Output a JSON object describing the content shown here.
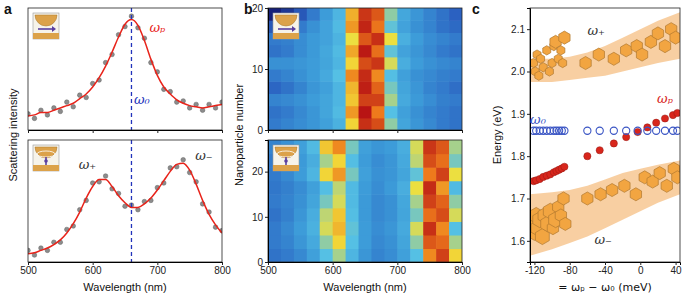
{
  "chart_data": [
    {
      "type": "scatter",
      "title": "a",
      "ylabel": "Scattering intensity",
      "x": [
        500,
        510,
        520,
        530,
        540,
        550,
        560,
        570,
        580,
        590,
        600,
        610,
        620,
        630,
        640,
        650,
        660,
        670,
        680,
        690,
        700,
        710,
        720,
        730,
        740,
        750,
        760,
        770,
        780,
        790,
        800
      ],
      "xlim": [
        500,
        800
      ],
      "xticks": [
        500,
        600,
        700,
        800
      ],
      "ylim": [
        0.05,
        1.1
      ],
      "tick_labels": false,
      "series": [
        {
          "type": "scatter",
          "marker": "circle",
          "color": "#8c8c8c",
          "values": [
            0.19,
            0.15,
            0.22,
            0.18,
            0.24,
            0.21,
            0.29,
            0.25,
            0.35,
            0.33,
            0.45,
            0.48,
            0.63,
            0.7,
            0.87,
            0.94,
            1.03,
            0.93,
            0.84,
            0.63,
            0.55,
            0.4,
            0.38,
            0.29,
            0.3,
            0.24,
            0.27,
            0.22,
            0.27,
            0.24,
            0.29
          ]
        },
        {
          "type": "line",
          "color": "#e8231a",
          "values": [
            0.17,
            0.18,
            0.2,
            0.2,
            0.22,
            0.24,
            0.26,
            0.28,
            0.32,
            0.36,
            0.42,
            0.5,
            0.6,
            0.72,
            0.85,
            0.96,
            1.0,
            0.95,
            0.82,
            0.66,
            0.52,
            0.42,
            0.36,
            0.31,
            0.28,
            0.26,
            0.25,
            0.24,
            0.25,
            0.26,
            0.27
          ]
        }
      ],
      "reference_lines": [
        {
          "x": 660,
          "color": "#2233bb",
          "line_style": "dashed"
        }
      ],
      "annotations": [
        {
          "text": "ωₚ",
          "x": 700,
          "y": 0.92,
          "color": "#e8231a"
        },
        {
          "text": "ω₀",
          "x": 676,
          "y": 0.3,
          "color": "#2233bb"
        }
      ]
    },
    {
      "type": "scatter",
      "xlabel": "Wavelength (nm)",
      "x": [
        500,
        510,
        520,
        530,
        540,
        550,
        560,
        570,
        580,
        590,
        600,
        610,
        620,
        630,
        640,
        650,
        660,
        670,
        680,
        690,
        700,
        710,
        720,
        730,
        740,
        750,
        760,
        770,
        780,
        790,
        800
      ],
      "xlim": [
        500,
        800
      ],
      "xticks": [
        500,
        600,
        700,
        800
      ],
      "ylim": [
        0.05,
        1.1
      ],
      "tick_labels": "x",
      "series": [
        {
          "type": "scatter",
          "marker": "circle",
          "color": "#8c8c8c",
          "values": [
            0.15,
            0.11,
            0.17,
            0.15,
            0.22,
            0.22,
            0.33,
            0.36,
            0.5,
            0.58,
            0.73,
            0.74,
            0.79,
            0.68,
            0.64,
            0.53,
            0.54,
            0.5,
            0.57,
            0.58,
            0.69,
            0.73,
            0.86,
            0.87,
            0.93,
            0.82,
            0.74,
            0.55,
            0.48,
            0.35,
            0.32
          ]
        },
        {
          "type": "line",
          "color": "#e8231a",
          "values": [
            0.12,
            0.13,
            0.15,
            0.17,
            0.2,
            0.24,
            0.3,
            0.38,
            0.48,
            0.6,
            0.7,
            0.76,
            0.76,
            0.7,
            0.62,
            0.56,
            0.52,
            0.52,
            0.55,
            0.6,
            0.67,
            0.75,
            0.83,
            0.89,
            0.9,
            0.84,
            0.72,
            0.58,
            0.46,
            0.37,
            0.3
          ]
        }
      ],
      "reference_lines": [
        {
          "x": 660,
          "color": "#2233bb",
          "line_style": "dashed"
        }
      ],
      "annotations": [
        {
          "text": "ω₊",
          "x": 592,
          "y": 0.88,
          "color": "#333333"
        },
        {
          "text": "ω₋",
          "x": 772,
          "y": 0.96,
          "color": "#333333"
        }
      ]
    },
    {
      "type": "heatmap",
      "title": "b",
      "ylabel": "Nanoparticle number",
      "xlim": [
        500,
        800
      ],
      "xticks": [
        500,
        600,
        700,
        800
      ],
      "ylim": [
        0,
        20
      ],
      "yticks": [
        0,
        10,
        20
      ],
      "tick_labels": "y",
      "cells": [
        [
          0.3,
          0.32,
          0.34,
          0.36,
          0.4,
          0.48,
          0.7,
          0.95,
          0.9,
          0.6,
          0.42,
          0.36,
          0.33,
          0.3,
          0.28
        ],
        [
          0.28,
          0.3,
          0.33,
          0.36,
          0.42,
          0.52,
          0.78,
          1.0,
          0.82,
          0.55,
          0.4,
          0.35,
          0.32,
          0.3,
          0.28
        ],
        [
          0.32,
          0.33,
          0.35,
          0.38,
          0.42,
          0.5,
          0.72,
          0.92,
          0.92,
          0.62,
          0.44,
          0.37,
          0.34,
          0.31,
          0.3
        ],
        [
          0.25,
          0.28,
          0.32,
          0.36,
          0.4,
          0.5,
          0.74,
          0.98,
          0.86,
          0.58,
          0.42,
          0.36,
          0.32,
          0.3,
          0.27
        ],
        [
          0.3,
          0.32,
          0.35,
          0.38,
          0.44,
          0.55,
          0.8,
          0.96,
          0.8,
          0.54,
          0.4,
          0.35,
          0.33,
          0.31,
          0.3
        ],
        [
          0.35,
          0.35,
          0.36,
          0.38,
          0.42,
          0.5,
          0.7,
          0.9,
          0.94,
          0.66,
          0.46,
          0.38,
          0.35,
          0.33,
          0.32
        ],
        [
          0.28,
          0.3,
          0.34,
          0.37,
          0.43,
          0.52,
          0.76,
          0.99,
          0.84,
          0.56,
          0.41,
          0.36,
          0.33,
          0.3,
          0.28
        ],
        [
          0.3,
          0.31,
          0.34,
          0.37,
          0.41,
          0.49,
          0.68,
          0.88,
          0.95,
          0.68,
          0.47,
          0.38,
          0.34,
          0.32,
          0.3
        ],
        [
          0.22,
          0.26,
          0.3,
          0.35,
          0.41,
          0.52,
          0.78,
          0.97,
          0.83,
          0.56,
          0.41,
          0.35,
          0.32,
          0.28,
          0.26
        ],
        [
          0.1,
          0.15,
          0.22,
          0.3,
          0.38,
          0.5,
          0.75,
          0.94,
          0.88,
          0.6,
          0.43,
          0.36,
          0.32,
          0.28,
          0.24
        ]
      ]
    },
    {
      "type": "heatmap",
      "xlabel": "Wavelength (nm)",
      "xlim": [
        500,
        800
      ],
      "xticks": [
        500,
        600,
        700,
        800
      ],
      "ylim": [
        0,
        27
      ],
      "yticks": [
        0,
        10,
        20
      ],
      "cells": [
        [
          0.28,
          0.3,
          0.33,
          0.4,
          0.55,
          0.62,
          0.5,
          0.36,
          0.32,
          0.34,
          0.4,
          0.55,
          0.8,
          0.92,
          0.7
        ],
        [
          0.3,
          0.32,
          0.36,
          0.44,
          0.6,
          0.7,
          0.55,
          0.38,
          0.33,
          0.35,
          0.42,
          0.6,
          0.88,
          0.85,
          0.62
        ],
        [
          0.3,
          0.33,
          0.38,
          0.48,
          0.66,
          0.74,
          0.56,
          0.38,
          0.34,
          0.36,
          0.44,
          0.66,
          0.95,
          0.8,
          0.55
        ],
        [
          0.28,
          0.31,
          0.36,
          0.46,
          0.64,
          0.72,
          0.54,
          0.37,
          0.33,
          0.35,
          0.42,
          0.58,
          0.84,
          0.9,
          0.66
        ],
        [
          0.3,
          0.32,
          0.35,
          0.42,
          0.58,
          0.66,
          0.52,
          0.37,
          0.33,
          0.35,
          0.43,
          0.62,
          0.92,
          0.86,
          0.6
        ],
        [
          0.29,
          0.31,
          0.34,
          0.4,
          0.54,
          0.64,
          0.52,
          0.38,
          0.34,
          0.37,
          0.46,
          0.68,
          0.96,
          0.78,
          0.52
        ],
        [
          0.3,
          0.33,
          0.38,
          0.5,
          0.7,
          0.78,
          0.58,
          0.4,
          0.35,
          0.36,
          0.42,
          0.56,
          0.82,
          0.92,
          0.68
        ],
        [
          0.3,
          0.32,
          0.37,
          0.46,
          0.62,
          0.7,
          0.54,
          0.38,
          0.34,
          0.36,
          0.44,
          0.64,
          0.9,
          0.84,
          0.58
        ],
        [
          0.32,
          0.35,
          0.4,
          0.52,
          0.72,
          0.8,
          0.58,
          0.4,
          0.36,
          0.38,
          0.46,
          0.66,
          0.94,
          0.88,
          0.62
        ]
      ]
    },
    {
      "type": "scatter",
      "title": "c",
      "xlabel": "= ωₚ − ω₀ (meV)",
      "ylabel": "Energy (eV)",
      "xlim": [
        -125,
        45
      ],
      "xticks": [
        -120,
        -80,
        -40,
        0,
        40
      ],
      "ylim": [
        1.55,
        2.15
      ],
      "yticks": [
        1.6,
        1.7,
        1.8,
        1.9,
        {
          "value": 2,
          "label": "2.0"
        },
        2.1
      ],
      "series": [
        {
          "type": "area",
          "color": "#f7c792",
          "x": [
            -125,
            -100,
            -80,
            -60,
            -40,
            -20,
            0,
            20,
            45
          ],
          "lower": [
            1.975,
            1.975,
            1.98,
            1.985,
            1.99,
            2.0,
            2.01,
            2.02,
            2.03
          ],
          "values": [
            2.03,
            2.03,
            2.035,
            2.045,
            2.06,
            2.08,
            2.1,
            2.12,
            2.14
          ]
        },
        {
          "type": "area",
          "color": "#f7c792",
          "x": [
            -125,
            -100,
            -80,
            -60,
            -40,
            -20,
            0,
            20,
            45
          ],
          "lower": [
            1.565,
            1.58,
            1.595,
            1.61,
            1.63,
            1.65,
            1.67,
            1.69,
            1.71
          ],
          "values": [
            1.71,
            1.715,
            1.72,
            1.73,
            1.745,
            1.76,
            1.77,
            1.78,
            1.79
          ]
        },
        {
          "type": "scatter",
          "marker": "hexagon",
          "color": "#f2a541",
          "x": [
            -121,
            -119,
            -117,
            -115,
            -113,
            -110,
            -106,
            -103,
            -100,
            -98,
            -96,
            -93,
            -90,
            -88,
            -86,
            -62,
            -47,
            -30,
            -16,
            -4,
            2,
            12,
            20,
            28,
            35,
            40
          ],
          "values": [
            2.02,
            2.0,
            2.04,
            1.99,
            2.03,
            2.01,
            2.05,
            2.0,
            2.02,
            2.06,
            2.07,
            2.03,
            2.05,
            2.02,
            2.08,
            2.02,
            2.04,
            2.03,
            2.05,
            2.06,
            2.04,
            2.07,
            2.09,
            2.06,
            2.1,
            2.08
          ],
          "sizes": [
            1,
            1,
            1,
            1,
            1,
            1,
            1,
            1,
            1,
            1,
            2,
            1,
            1,
            1,
            2,
            2,
            2,
            2,
            2,
            2,
            2,
            2,
            2,
            2,
            2,
            2
          ]
        },
        {
          "type": "scatter",
          "marker": "hexagon",
          "color": "#f2a541",
          "x": [
            -122,
            -120,
            -118,
            -116,
            -114,
            -111,
            -108,
            -105,
            -102,
            -99,
            -96,
            -93,
            -90,
            -87,
            -85,
            -60,
            -45,
            -32,
            -18,
            -5,
            5,
            14,
            22,
            30,
            38,
            42
          ],
          "values": [
            1.64,
            1.62,
            1.66,
            1.63,
            1.65,
            1.61,
            1.66,
            1.64,
            1.67,
            1.63,
            1.65,
            1.68,
            1.66,
            1.7,
            1.64,
            1.7,
            1.71,
            1.72,
            1.73,
            1.71,
            1.75,
            1.74,
            1.76,
            1.73,
            1.77,
            1.75
          ],
          "sizes": [
            3,
            3,
            3,
            3,
            3,
            3,
            3,
            3,
            3,
            2,
            3,
            2,
            2,
            2,
            2,
            2,
            2,
            2,
            2,
            2,
            2,
            2,
            2,
            2,
            2,
            2
          ]
        },
        {
          "type": "scatter",
          "marker": "circle",
          "color": "#d8261c",
          "x": [
            -121,
            -118,
            -114,
            -110,
            -106,
            -102,
            -98,
            -95,
            -92,
            -89,
            -86,
            -60,
            -46,
            -30,
            -16,
            -3,
            8,
            18,
            28,
            37,
            42
          ],
          "values": [
            1.741,
            1.743,
            1.746,
            1.751,
            1.754,
            1.757,
            1.762,
            1.765,
            1.768,
            1.771,
            1.775,
            1.8,
            1.814,
            1.83,
            1.845,
            1.857,
            1.868,
            1.879,
            1.889,
            1.897,
            1.902
          ]
        },
        {
          "type": "scatter",
          "marker": "circle-open",
          "color": "#3a55c4",
          "x": [
            -121,
            -118,
            -114,
            -110,
            -106,
            -102,
            -98,
            -95,
            -92,
            -89,
            -86,
            -60,
            -46,
            -30,
            -16,
            -3,
            8,
            18,
            28,
            37,
            42
          ],
          "values": [
            1.86,
            1.86,
            1.86,
            1.86,
            1.86,
            1.86,
            1.86,
            1.86,
            1.86,
            1.86,
            1.86,
            1.86,
            1.86,
            1.86,
            1.86,
            1.86,
            1.86,
            1.86,
            1.86,
            1.86,
            1.86
          ]
        }
      ],
      "annotations": [
        {
          "text": "ω₊",
          "x": -50,
          "y": 2.095,
          "color": "#333333"
        },
        {
          "text": "ω₋",
          "x": -42,
          "y": 1.6,
          "color": "#333333"
        },
        {
          "text": "ωₚ",
          "x": 28,
          "y": 1.935,
          "color": "#d8261c"
        },
        {
          "text": "ω₀",
          "x": -116,
          "y": 1.885,
          "color": "#3a55c4"
        }
      ]
    }
  ]
}
